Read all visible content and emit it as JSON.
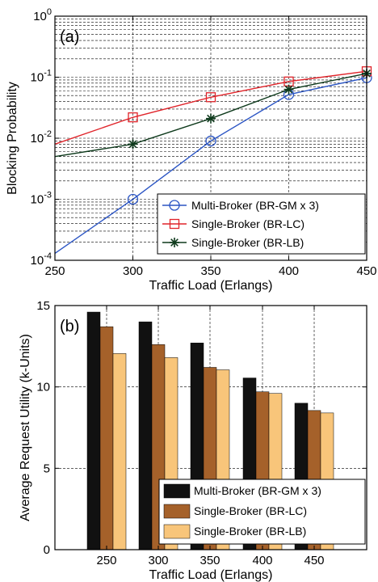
{
  "chart_data": [
    {
      "type": "line",
      "panel_label": "(a)",
      "xlabel": "Traffic Load (Erlangs)",
      "ylabel": "Blocking Probability",
      "x": [
        250,
        300,
        350,
        400,
        450
      ],
      "xlim": [
        250,
        450
      ],
      "ylim": [
        0.0001,
        1
      ],
      "yscale": "log",
      "x_ticks": [
        "250",
        "300",
        "350",
        "400",
        "450"
      ],
      "y_ticks": [
        {
          "base": "10",
          "exp": "-4",
          "value": 0.0001
        },
        {
          "base": "10",
          "exp": "-3",
          "value": 0.001
        },
        {
          "base": "10",
          "exp": "-2",
          "value": 0.01
        },
        {
          "base": "10",
          "exp": "-1",
          "value": 0.1
        },
        {
          "base": "10",
          "exp": "0",
          "value": 1
        }
      ],
      "grid": true,
      "legend_position": "bottom-right",
      "series": [
        {
          "name": "Multi-Broker (BR-GM x 3)",
          "color": "#2b55c4",
          "marker": "circle",
          "values": [
            0.00013,
            0.001,
            0.009,
            0.052,
            0.098
          ]
        },
        {
          "name": "Single-Broker (BR-LC)",
          "color": "#e0242a",
          "marker": "square",
          "values": [
            0.008,
            0.022,
            0.047,
            0.085,
            0.125
          ]
        },
        {
          "name": "Single-Broker (BR-LB)",
          "color": "#0e3a1c",
          "marker": "star",
          "values": [
            0.005,
            0.008,
            0.021,
            0.063,
            0.115
          ]
        }
      ]
    },
    {
      "type": "bar",
      "panel_label": "(b)",
      "xlabel": "Traffic Load (Erlangs)",
      "ylabel": "Average Request Utility (k-Units)",
      "categories": [
        "250",
        "300",
        "350",
        "400",
        "450"
      ],
      "ylim": [
        0,
        15
      ],
      "y_ticks": [
        "0",
        "5",
        "10",
        "15"
      ],
      "grid": true,
      "legend_position": "bottom-right",
      "series": [
        {
          "name": "Multi-Broker (BR-GM x 3)",
          "color": "#111111",
          "values": [
            14.6,
            14.0,
            12.7,
            10.55,
            9.0
          ]
        },
        {
          "name": "Single-Broker (BR-LC)",
          "color": "#a5612a",
          "values": [
            13.7,
            12.6,
            11.2,
            9.7,
            8.55
          ]
        },
        {
          "name": "Single-Broker (BR-LB)",
          "color": "#f8c57a",
          "values": [
            12.05,
            11.8,
            11.05,
            9.6,
            8.4
          ]
        }
      ]
    }
  ]
}
